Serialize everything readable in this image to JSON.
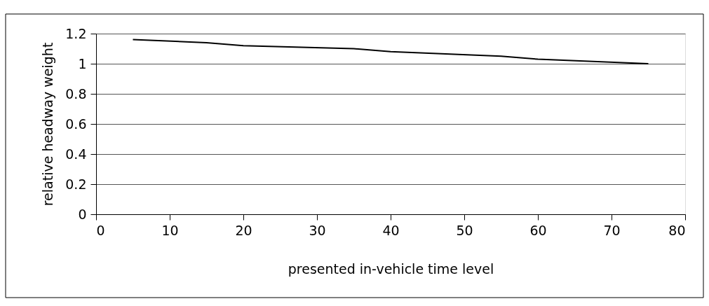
{
  "chart_data": {
    "type": "line",
    "xlabel": "presented in-vehicle time level",
    "ylabel": "relative headway weight",
    "x": [
      5,
      15,
      20,
      35,
      40,
      55,
      60,
      75
    ],
    "series": [
      {
        "color": "#000000",
        "values": [
          1.16,
          1.14,
          1.12,
          1.1,
          1.08,
          1.05,
          1.03,
          1.0
        ]
      }
    ],
    "xlim": [
      0,
      80
    ],
    "xticks": [
      0,
      10,
      20,
      30,
      40,
      50,
      60,
      70,
      80
    ],
    "ylim": [
      0,
      1.2
    ],
    "yticks": [
      0,
      0.2,
      0.4,
      0.6,
      0.8,
      1,
      1.2
    ],
    "grid": "y"
  }
}
